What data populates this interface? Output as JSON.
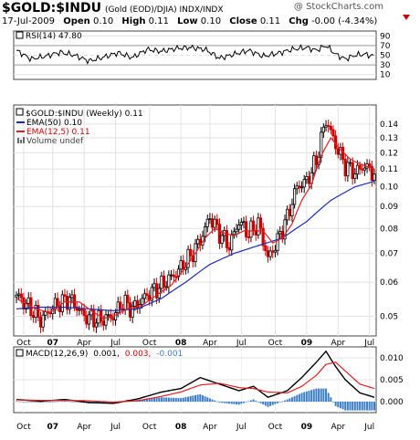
{
  "header": {
    "symbol": "$GOLD:$INDU",
    "description": "(Gold (EOD)/DJIA)  INDX/INDX",
    "watermark": "@ StockCharts.com",
    "date": "17-Jul-2009",
    "open_label": "Open",
    "open": "0.10",
    "high_label": "High",
    "high": "0.11",
    "low_label": "Low",
    "low": "0.10",
    "close_label": "Close",
    "close": "0.11",
    "chg_label": "Chg",
    "chg": "-0.00 (-4.34%)"
  },
  "colors": {
    "up": "#000000",
    "down": "#cc0000",
    "ema50": "#1f2ab5",
    "ema12": "#e02020",
    "macd_line": "#000000",
    "signal_line": "#e02020",
    "histogram": "#3d7fc6",
    "rsi": "#000000"
  },
  "rsi_panel": {
    "legend": "RSI(14) 47.80",
    "ticks": [
      "90",
      "70",
      "50",
      "30",
      "10"
    ]
  },
  "price_panel": {
    "legend_main": "$GOLD:$INDU (Weekly) 0.11",
    "legend_ema50": "EMA(50) 0.10",
    "legend_ema12": "EMA(12,5) 0.11",
    "legend_volume": "Volume undef",
    "ticks": [
      "0.14",
      "0.13",
      "0.12",
      "0.11",
      "0.10",
      "0.09",
      "0.08",
      "0.07",
      "0.06",
      "0.05"
    ]
  },
  "macd_panel": {
    "legend_label": "MACD(12,26,9)",
    "legend_macd": "0.001,",
    "legend_signal": "0.003,",
    "legend_hist": "-0.001",
    "ticks": [
      "0.010",
      "0.005",
      "0.000"
    ]
  },
  "x_axis": {
    "labels": [
      "Oct",
      "07",
      "Apr",
      "Jul",
      "Oct",
      "08",
      "Apr",
      "Jul",
      "Oct",
      "09",
      "Apr",
      "Jul"
    ],
    "bold": [
      false,
      true,
      false,
      false,
      false,
      true,
      false,
      false,
      false,
      true,
      false,
      false
    ]
  },
  "chart_data": {
    "type": "line",
    "title": "$GOLD:$INDU (Gold (EOD)/DJIA) INDX/INDX",
    "y_scale": "log",
    "price_ylim": [
      0.045,
      0.155
    ],
    "price_y_ticks": [
      0.14,
      0.13,
      0.12,
      0.11,
      0.1,
      0.09,
      0.08,
      0.07,
      0.06,
      0.05
    ],
    "x_tick_labels": [
      "Oct",
      "07",
      "Apr",
      "Jul",
      "Oct",
      "08",
      "Apr",
      "Jul",
      "Oct",
      "09",
      "Apr",
      "Jul"
    ],
    "x_tick_weeks": [
      3,
      15,
      28,
      41,
      55,
      68,
      80,
      93,
      107,
      120,
      133,
      146
    ],
    "series": [
      {
        "name": "$GOLD:$INDU (Weekly) 0.11",
        "kind": "close",
        "weeks": [
          0,
          6,
          10,
          16,
          22,
          28,
          34,
          40,
          44,
          48,
          54,
          60,
          66,
          72,
          76,
          80,
          84,
          88,
          92,
          96,
          100,
          104,
          108,
          112,
          116,
          120,
          124,
          128,
          132,
          136,
          140,
          144,
          148
        ],
        "values": [
          0.056,
          0.052,
          0.049,
          0.053,
          0.055,
          0.05,
          0.049,
          0.05,
          0.054,
          0.052,
          0.056,
          0.059,
          0.063,
          0.069,
          0.075,
          0.085,
          0.078,
          0.073,
          0.083,
          0.078,
          0.082,
          0.068,
          0.075,
          0.085,
          0.1,
          0.103,
          0.115,
          0.143,
          0.125,
          0.112,
          0.108,
          0.112,
          0.107
        ]
      },
      {
        "name": "EMA(50) 0.10",
        "kind": "ema",
        "weeks": [
          0,
          10,
          20,
          30,
          40,
          50,
          60,
          70,
          80,
          90,
          100,
          110,
          120,
          130,
          140,
          148
        ],
        "values": [
          0.052,
          0.0525,
          0.0525,
          0.052,
          0.0515,
          0.052,
          0.055,
          0.06,
          0.066,
          0.07,
          0.073,
          0.076,
          0.083,
          0.093,
          0.1,
          0.103
        ]
      },
      {
        "name": "EMA(12,5) 0.11",
        "kind": "ema",
        "weeks": [
          0,
          8,
          14,
          20,
          26,
          32,
          36,
          40,
          46,
          52,
          58,
          64,
          70,
          74,
          78,
          82,
          86,
          90,
          94,
          98,
          102,
          106,
          110,
          114,
          118,
          122,
          126,
          130,
          134,
          138,
          142,
          148
        ],
        "values": [
          0.055,
          0.052,
          0.051,
          0.054,
          0.054,
          0.051,
          0.0495,
          0.05,
          0.052,
          0.053,
          0.056,
          0.059,
          0.065,
          0.07,
          0.076,
          0.08,
          0.078,
          0.077,
          0.079,
          0.079,
          0.079,
          0.074,
          0.076,
          0.082,
          0.093,
          0.101,
          0.118,
          0.13,
          0.122,
          0.116,
          0.113,
          0.11
        ]
      }
    ],
    "rsi": {
      "name": "RSI(14)",
      "ylim": [
        0,
        100
      ],
      "y_ticks": [
        90,
        70,
        50,
        30,
        10
      ],
      "weeks": [
        0,
        6,
        12,
        18,
        24,
        30,
        36,
        42,
        48,
        54,
        60,
        66,
        72,
        78,
        84,
        90,
        96,
        102,
        108,
        114,
        120,
        124,
        128,
        132,
        136,
        140,
        144,
        148
      ],
      "values": [
        60,
        42,
        48,
        56,
        50,
        38,
        46,
        55,
        45,
        62,
        58,
        64,
        66,
        62,
        44,
        52,
        60,
        48,
        54,
        62,
        66,
        60,
        70,
        52,
        42,
        50,
        52,
        48
      ]
    },
    "macd": {
      "name": "MACD(12,26,9)",
      "ylim": [
        -0.0025,
        0.0125
      ],
      "y_ticks": [
        0.01,
        0.005,
        0.0
      ],
      "weeks": [
        0,
        10,
        20,
        30,
        40,
        50,
        60,
        68,
        76,
        84,
        92,
        98,
        104,
        112,
        118,
        124,
        128,
        132,
        136,
        142,
        148
      ],
      "macd": [
        0.0005,
        0.0001,
        0.0005,
        -0.0002,
        -0.0004,
        0.0006,
        0.0022,
        0.003,
        0.0055,
        0.004,
        0.0025,
        0.0035,
        0.001,
        0.0025,
        0.0055,
        0.009,
        0.0115,
        0.008,
        0.005,
        0.002,
        0.001
      ],
      "signal": [
        0.0004,
        0.0003,
        0.0003,
        0.0002,
        -0.0001,
        0.0002,
        0.0012,
        0.0022,
        0.0038,
        0.0042,
        0.0032,
        0.003,
        0.0022,
        0.002,
        0.0035,
        0.006,
        0.0085,
        0.009,
        0.007,
        0.004,
        0.003
      ]
    }
  }
}
